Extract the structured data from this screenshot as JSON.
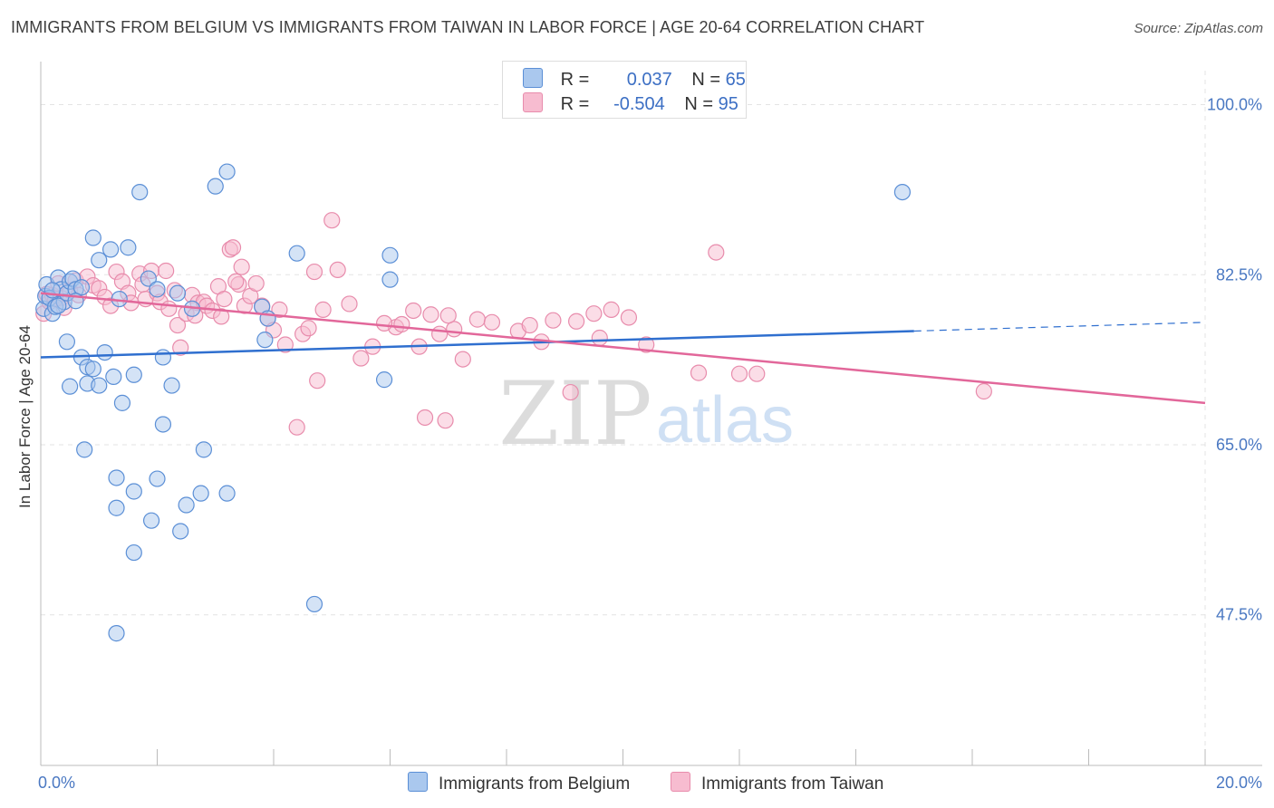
{
  "title": "IMMIGRANTS FROM BELGIUM VS IMMIGRANTS FROM TAIWAN IN LABOR FORCE | AGE 20-64 CORRELATION CHART",
  "source": "Source: ZipAtlas.com",
  "watermark": {
    "zip": "ZIP",
    "atlas": "atlas"
  },
  "legend": {
    "r_label": "R =",
    "n_label": "N =",
    "belgium": {
      "r": "0.037",
      "n": "65"
    },
    "taiwan": {
      "r": "-0.504",
      "n": "95"
    }
  },
  "colors": {
    "belgium_fill": "#aac8ee",
    "belgium_stroke": "#5b8fd6",
    "belgium_line": "#2f6fcf",
    "taiwan_fill": "#f7bcd0",
    "taiwan_stroke": "#e88cac",
    "taiwan_line": "#e2679a",
    "tick_label": "#4a78c2",
    "grid": "#e3e3e3"
  },
  "chart_data": {
    "type": "scatter",
    "xlabel": "",
    "ylabel": "In Labor Force | Age 20-64",
    "xlim": [
      0,
      20
    ],
    "ylim": [
      32,
      103.5
    ],
    "x_tick_labels": [
      "0.0%",
      "20.0%"
    ],
    "y_ticks": [
      100,
      82.5,
      65,
      47.5
    ],
    "y_tick_labels": [
      "100.0%",
      "82.5%",
      "65.0%",
      "47.5%"
    ],
    "grid": true,
    "legend_position": "top-center",
    "series": [
      {
        "name": "Immigrants from Belgium",
        "trend": {
          "x": [
            0,
            15.0
          ],
          "y": [
            74.0,
            76.7
          ],
          "dashed_to_x": 20,
          "dashed_end_y": 77.6
        },
        "points": [
          [
            0.05,
            79.0
          ],
          [
            0.08,
            80.3
          ],
          [
            0.1,
            81.5
          ],
          [
            0.15,
            80.1
          ],
          [
            0.2,
            78.5
          ],
          [
            0.25,
            79.2
          ],
          [
            0.3,
            82.2
          ],
          [
            0.35,
            81.0
          ],
          [
            0.4,
            79.7
          ],
          [
            0.45,
            80.6
          ],
          [
            0.5,
            81.8
          ],
          [
            0.55,
            82.1
          ],
          [
            0.6,
            81.0
          ],
          [
            0.7,
            81.2
          ],
          [
            0.45,
            75.6
          ],
          [
            0.5,
            71.0
          ],
          [
            0.7,
            74.0
          ],
          [
            0.8,
            73.0
          ],
          [
            0.8,
            71.3
          ],
          [
            0.9,
            86.3
          ],
          [
            1.0,
            84.0
          ],
          [
            1.1,
            74.5
          ],
          [
            1.2,
            85.1
          ],
          [
            1.25,
            72.0
          ],
          [
            1.35,
            80.0
          ],
          [
            1.4,
            69.3
          ],
          [
            1.5,
            85.3
          ],
          [
            1.6,
            72.2
          ],
          [
            1.7,
            91.0
          ],
          [
            1.85,
            82.1
          ],
          [
            2.0,
            61.5
          ],
          [
            2.1,
            74.0
          ],
          [
            2.1,
            67.1
          ],
          [
            2.25,
            71.1
          ],
          [
            2.35,
            80.6
          ],
          [
            2.5,
            58.8
          ],
          [
            2.75,
            60.0
          ],
          [
            2.8,
            64.5
          ],
          [
            3.0,
            91.6
          ],
          [
            3.2,
            93.1
          ],
          [
            3.8,
            79.2
          ],
          [
            3.85,
            75.8
          ],
          [
            4.4,
            84.7
          ],
          [
            4.7,
            48.6
          ],
          [
            5.9,
            71.7
          ],
          [
            14.8,
            91.0
          ],
          [
            0.75,
            64.5
          ],
          [
            1.3,
            61.6
          ],
          [
            1.6,
            60.2
          ],
          [
            1.3,
            58.5
          ],
          [
            1.9,
            57.2
          ],
          [
            2.4,
            56.1
          ],
          [
            1.6,
            53.9
          ],
          [
            1.3,
            45.6
          ],
          [
            0.3,
            79.3
          ],
          [
            0.9,
            72.8
          ],
          [
            1.0,
            71.1
          ],
          [
            2.0,
            81.0
          ],
          [
            3.2,
            60.0
          ],
          [
            0.2,
            80.9
          ],
          [
            0.6,
            79.8
          ],
          [
            6.0,
            84.5
          ],
          [
            6.0,
            82.0
          ],
          [
            3.9,
            78.0
          ],
          [
            2.6,
            79.0
          ]
        ]
      },
      {
        "name": "Immigrants from Taiwan",
        "trend": {
          "x": [
            0,
            20
          ],
          "y": [
            80.6,
            69.3
          ]
        },
        "points": [
          [
            0.05,
            78.5
          ],
          [
            0.1,
            80.5
          ],
          [
            0.15,
            79.7
          ],
          [
            0.2,
            80.4
          ],
          [
            0.3,
            81.6
          ],
          [
            0.35,
            80.1
          ],
          [
            0.4,
            79.1
          ],
          [
            0.5,
            80.9
          ],
          [
            0.6,
            81.9
          ],
          [
            0.65,
            80.4
          ],
          [
            0.8,
            82.3
          ],
          [
            0.9,
            81.4
          ],
          [
            1.0,
            81.1
          ],
          [
            1.1,
            80.2
          ],
          [
            1.2,
            79.3
          ],
          [
            1.3,
            82.8
          ],
          [
            1.4,
            81.8
          ],
          [
            1.5,
            80.6
          ],
          [
            1.55,
            79.6
          ],
          [
            1.7,
            82.6
          ],
          [
            1.75,
            81.5
          ],
          [
            1.8,
            80.0
          ],
          [
            1.9,
            82.9
          ],
          [
            2.0,
            80.6
          ],
          [
            2.05,
            79.7
          ],
          [
            2.15,
            82.9
          ],
          [
            2.2,
            79.0
          ],
          [
            2.3,
            80.9
          ],
          [
            2.35,
            77.3
          ],
          [
            2.4,
            75.0
          ],
          [
            2.5,
            78.5
          ],
          [
            2.6,
            80.4
          ],
          [
            2.7,
            79.6
          ],
          [
            2.8,
            79.7
          ],
          [
            2.85,
            79.3
          ],
          [
            2.95,
            78.8
          ],
          [
            3.05,
            81.3
          ],
          [
            3.1,
            78.2
          ],
          [
            3.15,
            80.0
          ],
          [
            3.25,
            85.1
          ],
          [
            3.3,
            85.3
          ],
          [
            3.4,
            81.5
          ],
          [
            3.45,
            83.3
          ],
          [
            3.5,
            79.3
          ],
          [
            3.6,
            80.3
          ],
          [
            3.7,
            81.6
          ],
          [
            3.8,
            79.3
          ],
          [
            3.9,
            78.0
          ],
          [
            4.0,
            76.8
          ],
          [
            4.1,
            78.9
          ],
          [
            4.2,
            75.3
          ],
          [
            4.4,
            66.8
          ],
          [
            4.5,
            76.4
          ],
          [
            4.6,
            77.0
          ],
          [
            4.7,
            82.8
          ],
          [
            4.75,
            71.6
          ],
          [
            4.85,
            78.9
          ],
          [
            5.0,
            88.1
          ],
          [
            5.1,
            83.0
          ],
          [
            5.3,
            79.5
          ],
          [
            5.5,
            73.9
          ],
          [
            5.7,
            75.1
          ],
          [
            6.1,
            77.1
          ],
          [
            6.2,
            77.4
          ],
          [
            6.4,
            78.8
          ],
          [
            6.5,
            75.1
          ],
          [
            6.6,
            67.8
          ],
          [
            6.7,
            78.4
          ],
          [
            6.85,
            76.4
          ],
          [
            6.95,
            67.5
          ],
          [
            7.1,
            76.9
          ],
          [
            7.25,
            73.8
          ],
          [
            7.5,
            77.9
          ],
          [
            7.75,
            77.6
          ],
          [
            8.2,
            76.7
          ],
          [
            8.4,
            77.3
          ],
          [
            8.6,
            75.6
          ],
          [
            8.8,
            77.8
          ],
          [
            9.1,
            70.4
          ],
          [
            9.2,
            77.7
          ],
          [
            9.6,
            76.0
          ],
          [
            9.8,
            78.9
          ],
          [
            10.1,
            78.1
          ],
          [
            10.4,
            75.3
          ],
          [
            11.3,
            72.4
          ],
          [
            11.6,
            84.8
          ],
          [
            12.0,
            72.3
          ],
          [
            12.3,
            72.3
          ],
          [
            16.2,
            70.5
          ],
          [
            3.35,
            81.8
          ],
          [
            7.0,
            78.3
          ],
          [
            5.9,
            77.5
          ],
          [
            2.65,
            78.3
          ],
          [
            9.5,
            78.5
          ],
          [
            0.25,
            80.0
          ]
        ]
      }
    ]
  }
}
